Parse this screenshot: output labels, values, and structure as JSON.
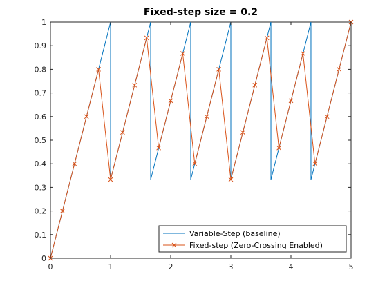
{
  "chart_data": {
    "type": "line",
    "title": "Fixed-step size = 0.2",
    "xlabel": "",
    "ylabel": "",
    "xlim": [
      0,
      5
    ],
    "ylim": [
      0,
      1
    ],
    "xticks": [
      "0",
      "1",
      "2",
      "3",
      "4",
      "5"
    ],
    "yticks": [
      "0",
      "0.1",
      "0.2",
      "0.3",
      "0.4",
      "0.5",
      "0.6",
      "0.7",
      "0.8",
      "0.9",
      "1"
    ],
    "grid": false,
    "legend_position": "bottom-right",
    "series": [
      {
        "name": "Variable-Step (baseline)",
        "color": "#0072bd",
        "marker": "none",
        "x": [
          0,
          1,
          1,
          1.667,
          1.667,
          2.333,
          2.333,
          3,
          3,
          3.667,
          3.667,
          4.333,
          4.333,
          5
        ],
        "y": [
          0,
          1,
          0.333,
          1,
          0.333,
          1,
          0.333,
          1,
          0.333,
          1,
          0.333,
          1,
          0.333,
          1
        ]
      },
      {
        "name": "Fixed-step (Zero-Crossing Enabled)",
        "color": "#d95319",
        "marker": "x",
        "x": [
          0,
          0.2,
          0.4,
          0.6,
          0.8,
          1.0,
          1.2,
          1.4,
          1.6,
          1.8,
          2.0,
          2.2,
          2.4,
          2.6,
          2.8,
          3.0,
          3.2,
          3.4,
          3.6,
          3.8,
          4.0,
          4.2,
          4.4,
          4.6,
          4.8,
          5.0
        ],
        "y": [
          0,
          0.2,
          0.4,
          0.6,
          0.8,
          0.333,
          0.533,
          0.733,
          0.933,
          0.467,
          0.667,
          0.867,
          0.4,
          0.6,
          0.8,
          0.333,
          0.533,
          0.733,
          0.933,
          0.467,
          0.667,
          0.867,
          0.4,
          0.6,
          0.8,
          1.0
        ]
      }
    ]
  }
}
